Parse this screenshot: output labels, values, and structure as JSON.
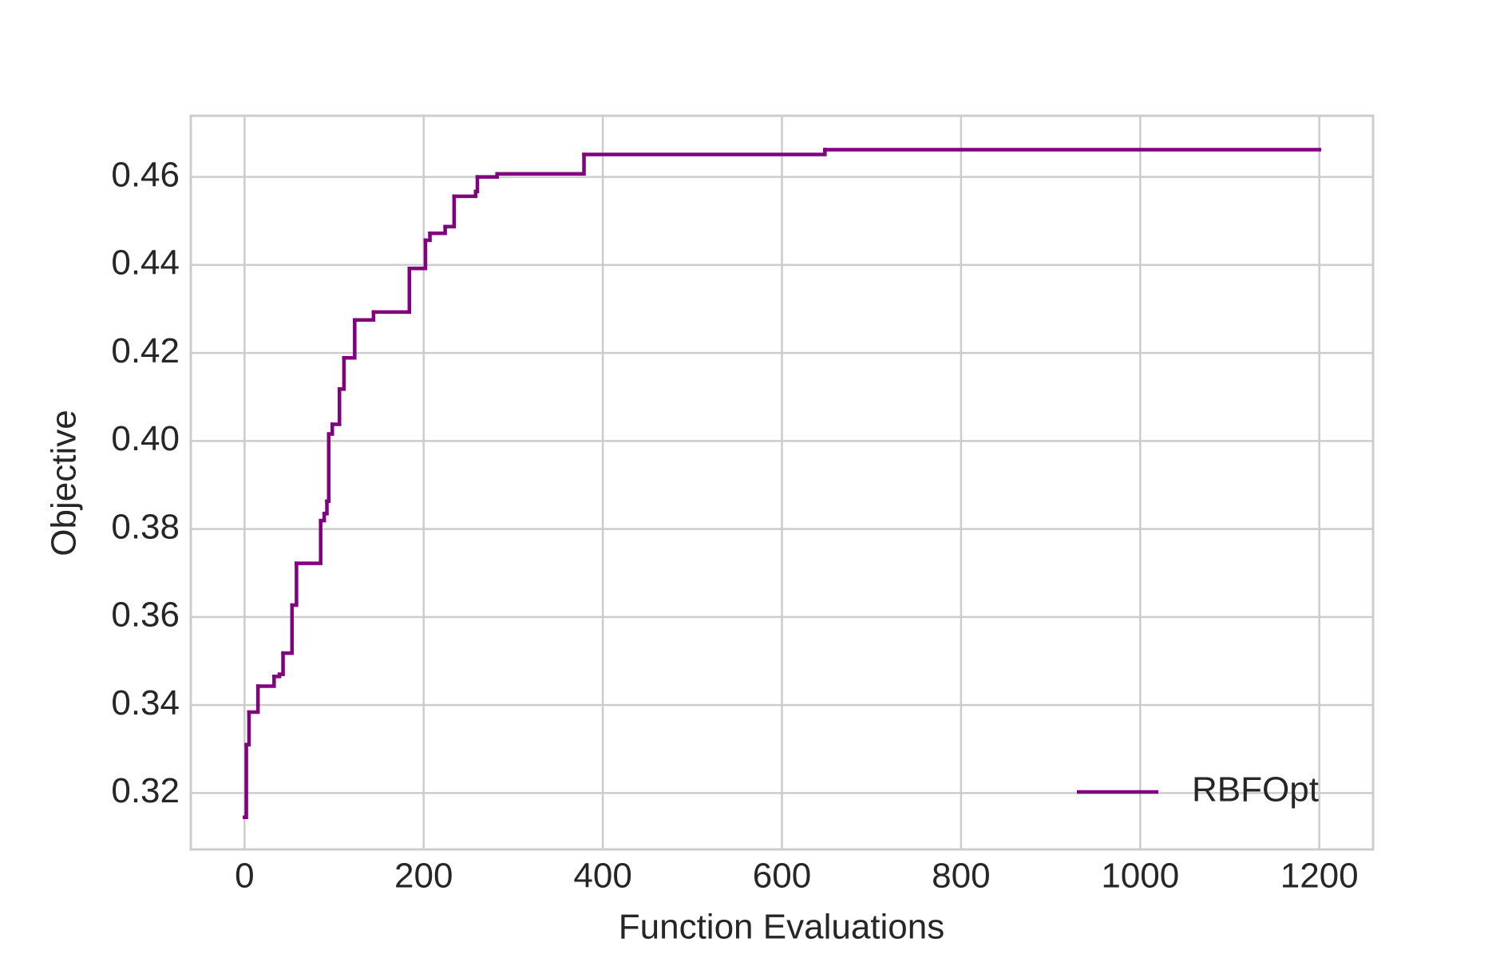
{
  "chart_data": {
    "type": "line",
    "drawstyle": "steps-post",
    "x_label": "Function Evaluations",
    "y_label": "Objective",
    "x": [
      0,
      2,
      5,
      15,
      33,
      39,
      43,
      53,
      58,
      85,
      89,
      92,
      94,
      98,
      106,
      111,
      123,
      144,
      184,
      202,
      207,
      224,
      234,
      258,
      260,
      282,
      379,
      648,
      1200
    ],
    "series": [
      {
        "name": "RBFOpt",
        "color": "#800080",
        "values": [
          0.3145,
          0.331,
          0.3384,
          0.3443,
          0.3465,
          0.347,
          0.3518,
          0.3627,
          0.3722,
          0.3819,
          0.3835,
          0.3863,
          0.4016,
          0.4038,
          0.4118,
          0.4189,
          0.4275,
          0.4293,
          0.4392,
          0.4456,
          0.4472,
          0.4487,
          0.4556,
          0.4567,
          0.46,
          0.4607,
          0.4651,
          0.4662,
          0.4662
        ]
      }
    ],
    "xlim": [
      -60,
      1260
    ],
    "ylim": [
      0.3072,
      0.4739
    ],
    "xticks": [
      0,
      200,
      400,
      600,
      800,
      1000,
      1200
    ],
    "yticks": [
      {
        "value": 0.32,
        "label": "0.32"
      },
      {
        "value": 0.34,
        "label": "0.34"
      },
      {
        "value": 0.36,
        "label": "0.36"
      },
      {
        "value": 0.38,
        "label": "0.38"
      },
      {
        "value": 0.4,
        "label": "0.40"
      },
      {
        "value": 0.42,
        "label": "0.42"
      },
      {
        "value": 0.44,
        "label": "0.44"
      },
      {
        "value": 0.46,
        "label": "0.46"
      }
    ],
    "grid": true,
    "legend": "lower right"
  }
}
